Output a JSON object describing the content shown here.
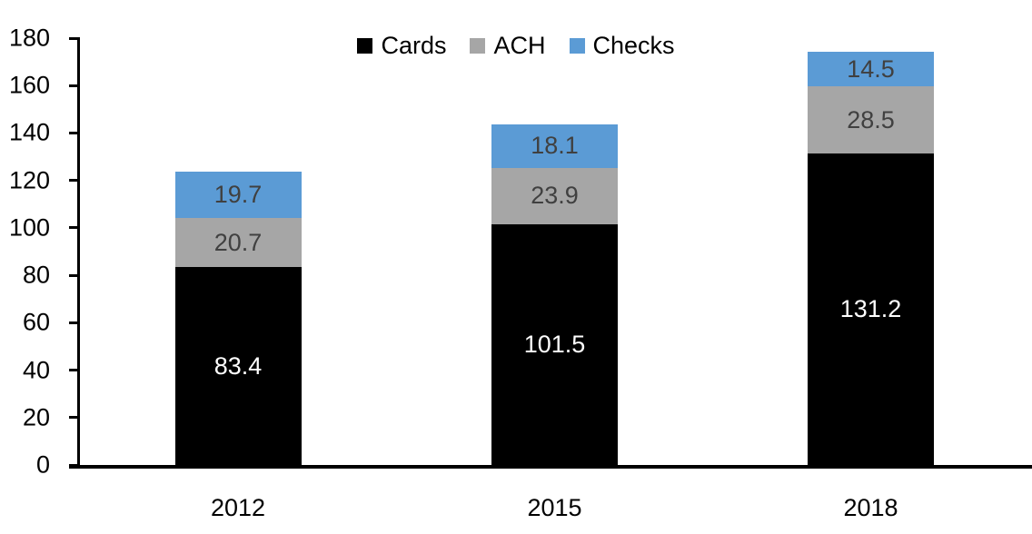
{
  "chart_data": {
    "type": "bar",
    "stacked": true,
    "title": "",
    "xlabel": "",
    "ylabel": "",
    "categories": [
      "2012",
      "2015",
      "2018"
    ],
    "series": [
      {
        "name": "Cards",
        "color": "#000000",
        "label_color": "#ffffff",
        "values": [
          83.4,
          101.5,
          131.2
        ]
      },
      {
        "name": "ACH",
        "color": "#a6a6a6",
        "label_color": "#404040",
        "values": [
          20.7,
          23.9,
          28.5
        ]
      },
      {
        "name": "Checks",
        "color": "#5b9bd5",
        "label_color": "#404040",
        "values": [
          19.7,
          18.1,
          14.5
        ]
      }
    ],
    "totals": [
      123.8,
      143.5,
      174.2
    ],
    "ylim": [
      0,
      180
    ],
    "ytick_step": 20,
    "yticks": [
      0,
      20,
      40,
      60,
      80,
      100,
      120,
      140,
      160,
      180
    ],
    "legend_position": "top-center",
    "grid": false,
    "axis_color": "#000000",
    "background": "#ffffff"
  }
}
